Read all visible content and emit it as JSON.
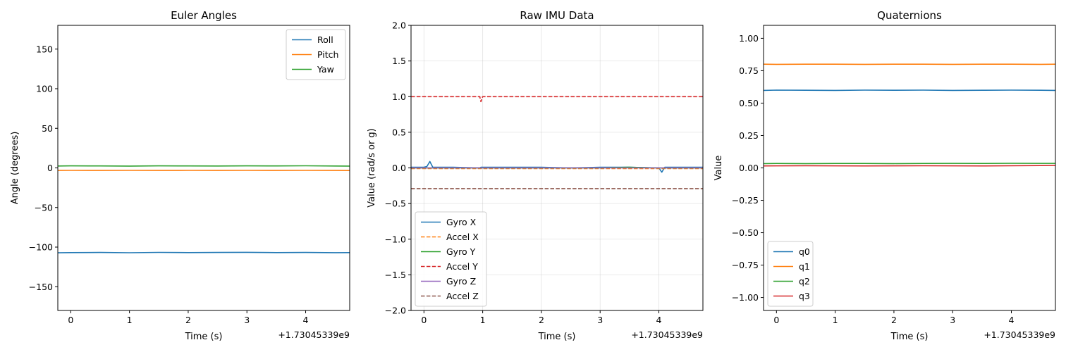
{
  "chart_data": [
    {
      "type": "line",
      "title": "Euler Angles",
      "xlabel": "Time (s)",
      "ylabel": "Angle (degrees)",
      "offset_text": "+1.73045339e9",
      "xlim": [
        -0.22,
        4.75
      ],
      "ylim": [
        -180,
        180
      ],
      "xticks": [
        0,
        1,
        2,
        3,
        4
      ],
      "xtick_labels": [
        "0",
        "1",
        "2",
        "3",
        "4"
      ],
      "yticks": [
        -150,
        -100,
        -50,
        0,
        50,
        100,
        150
      ],
      "ytick_labels": [
        "−150",
        "−100",
        "−50",
        "0",
        "50",
        "100",
        "150"
      ],
      "grid": false,
      "legend_position": "top-right",
      "x": [
        -0.22,
        0.0,
        0.5,
        1.0,
        1.5,
        2.0,
        2.5,
        3.0,
        3.5,
        4.0,
        4.5,
        4.75
      ],
      "series": [
        {
          "name": "Roll",
          "color": "#1f77b4",
          "dash": "solid",
          "values": [
            -107.2,
            -106.9,
            -106.8,
            -107.1,
            -106.7,
            -106.9,
            -106.8,
            -106.6,
            -106.9,
            -106.8,
            -107.0,
            -106.9
          ]
        },
        {
          "name": "Pitch",
          "color": "#ff7f0e",
          "dash": "solid",
          "values": [
            -3.2,
            -3.1,
            -3.2,
            -3.1,
            -3.2,
            -3.1,
            -3.2,
            -3.1,
            -3.2,
            -3.1,
            -3.2,
            -3.3
          ]
        },
        {
          "name": "Yaw",
          "color": "#2ca02c",
          "dash": "solid",
          "values": [
            2.4,
            2.6,
            2.5,
            2.3,
            2.6,
            2.5,
            2.4,
            2.6,
            2.5,
            2.7,
            2.4,
            2.3
          ]
        }
      ]
    },
    {
      "type": "line",
      "title": "Raw IMU Data",
      "xlabel": "Time (s)",
      "ylabel": "Value (rad/s or g)",
      "offset_text": "+1.73045339e9",
      "xlim": [
        -0.22,
        4.75
      ],
      "ylim": [
        -2.0,
        2.0
      ],
      "xticks": [
        0,
        1,
        2,
        3,
        4
      ],
      "xtick_labels": [
        "0",
        "1",
        "2",
        "3",
        "4"
      ],
      "yticks": [
        -2.0,
        -1.5,
        -1.0,
        -0.5,
        0.0,
        0.5,
        1.0,
        1.5,
        2.0
      ],
      "ytick_labels": [
        "−2.0",
        "−1.5",
        "−1.0",
        "−0.5",
        "0.0",
        "0.5",
        "1.0",
        "1.5",
        "2.0"
      ],
      "grid": true,
      "legend_position": "bottom-left",
      "x": [
        -0.22,
        0.0,
        0.05,
        0.1,
        0.15,
        0.5,
        0.95,
        0.97,
        1.0,
        1.5,
        2.0,
        2.5,
        3.0,
        3.5,
        4.0,
        4.05,
        4.1,
        4.5,
        4.75
      ],
      "series": [
        {
          "name": "Gyro X",
          "color": "#1f77b4",
          "dash": "solid",
          "values": [
            0.01,
            0.01,
            0.02,
            0.09,
            0.01,
            0.01,
            0.0,
            0.01,
            0.01,
            0.01,
            0.01,
            0.0,
            0.01,
            0.01,
            0.0,
            -0.06,
            0.01,
            0.01,
            0.01
          ]
        },
        {
          "name": "Accel X",
          "color": "#ff7f0e",
          "dash": "dashed",
          "values": [
            -0.01,
            -0.01,
            -0.01,
            -0.01,
            -0.01,
            -0.01,
            -0.01,
            -0.01,
            -0.01,
            -0.01,
            -0.01,
            -0.01,
            -0.01,
            -0.01,
            -0.01,
            -0.01,
            -0.01,
            -0.01,
            -0.01
          ]
        },
        {
          "name": "Gyro Y",
          "color": "#2ca02c",
          "dash": "solid",
          "values": [
            0.0,
            0.0,
            0.0,
            0.0,
            0.0,
            0.0,
            0.0,
            0.0,
            0.0,
            0.0,
            0.0,
            0.0,
            0.0,
            0.01,
            0.0,
            0.0,
            0.0,
            0.0,
            0.0
          ]
        },
        {
          "name": "Accel Y",
          "color": "#d62728",
          "dash": "dashed",
          "values": [
            1.0,
            1.0,
            1.0,
            1.0,
            1.0,
            1.0,
            1.0,
            0.93,
            1.0,
            1.0,
            1.0,
            1.0,
            1.0,
            1.0,
            1.0,
            1.0,
            1.0,
            1.0,
            1.0
          ]
        },
        {
          "name": "Gyro Z",
          "color": "#9467bd",
          "dash": "solid",
          "values": [
            0.0,
            0.0,
            0.0,
            0.0,
            0.0,
            0.0,
            0.0,
            0.0,
            0.0,
            0.0,
            0.0,
            0.0,
            0.0,
            0.0,
            0.0,
            0.0,
            0.0,
            0.0,
            0.0
          ]
        },
        {
          "name": "Accel Z",
          "color": "#8c564b",
          "dash": "dashed",
          "values": [
            -0.29,
            -0.29,
            -0.29,
            -0.29,
            -0.29,
            -0.29,
            -0.29,
            -0.29,
            -0.29,
            -0.29,
            -0.29,
            -0.29,
            -0.29,
            -0.29,
            -0.29,
            -0.29,
            -0.29,
            -0.29,
            -0.29
          ]
        }
      ]
    },
    {
      "type": "line",
      "title": "Quaternions",
      "xlabel": "Time (s)",
      "ylabel": "Value",
      "offset_text": "+1.73045339e9",
      "xlim": [
        -0.22,
        4.75
      ],
      "ylim": [
        -1.1,
        1.1
      ],
      "xticks": [
        0,
        1,
        2,
        3,
        4
      ],
      "xtick_labels": [
        "0",
        "1",
        "2",
        "3",
        "4"
      ],
      "yticks": [
        -1.0,
        -0.75,
        -0.5,
        -0.25,
        0.0,
        0.25,
        0.5,
        0.75,
        1.0
      ],
      "ytick_labels": [
        "−1.00",
        "−0.75",
        "−0.50",
        "−0.25",
        "0.00",
        "0.25",
        "0.50",
        "0.75",
        "1.00"
      ],
      "grid": false,
      "legend_position": "bottom-left",
      "x": [
        -0.22,
        0.0,
        0.5,
        1.0,
        1.5,
        2.0,
        2.5,
        3.0,
        3.5,
        4.0,
        4.5,
        4.75
      ],
      "series": [
        {
          "name": "q0",
          "color": "#1f77b4",
          "dash": "solid",
          "values": [
            0.598,
            0.6,
            0.599,
            0.598,
            0.6,
            0.599,
            0.6,
            0.598,
            0.599,
            0.6,
            0.599,
            0.598
          ]
        },
        {
          "name": "q1",
          "color": "#ff7f0e",
          "dash": "solid",
          "values": [
            0.8,
            0.799,
            0.8,
            0.8,
            0.799,
            0.8,
            0.8,
            0.799,
            0.8,
            0.8,
            0.799,
            0.8
          ]
        },
        {
          "name": "q2",
          "color": "#2ca02c",
          "dash": "solid",
          "values": [
            0.033,
            0.034,
            0.033,
            0.034,
            0.034,
            0.033,
            0.034,
            0.035,
            0.034,
            0.036,
            0.035,
            0.035
          ]
        },
        {
          "name": "q3",
          "color": "#d62728",
          "dash": "solid",
          "values": [
            0.015,
            0.016,
            0.017,
            0.016,
            0.015,
            0.016,
            0.017,
            0.016,
            0.015,
            0.017,
            0.018,
            0.02
          ]
        }
      ]
    }
  ]
}
